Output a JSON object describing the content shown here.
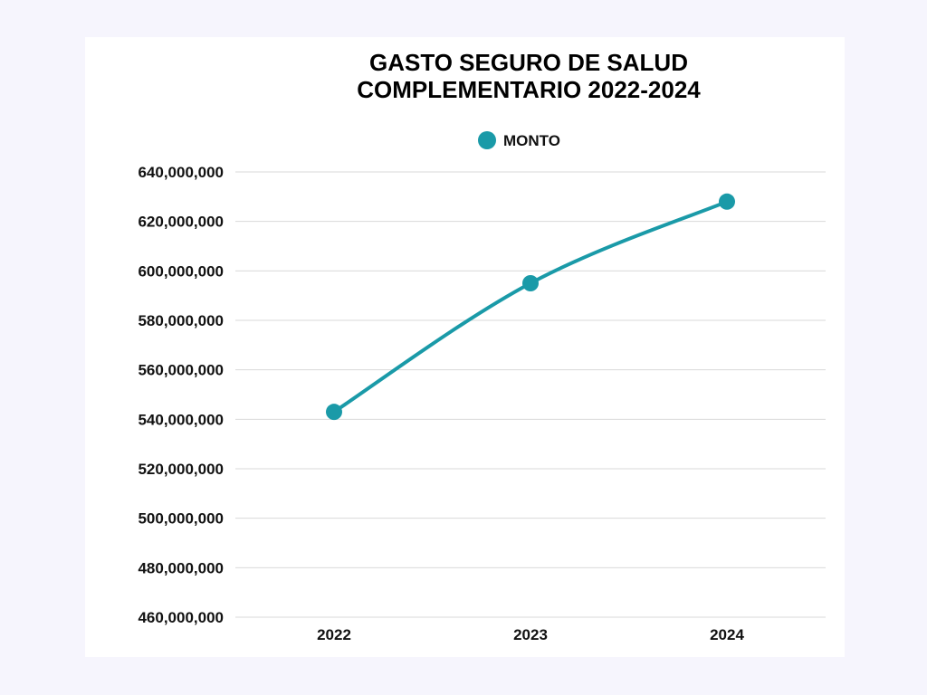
{
  "colors": {
    "page_background": "#f6f5fd",
    "card_background": "#ffffff",
    "series": "#1a9aa8",
    "grid": "#d9d9d9",
    "text": "#111111"
  },
  "chart_data": {
    "type": "line",
    "title_lines": [
      "GASTO SEGURO DE SALUD",
      "COMPLEMENTARIO 2022-2024"
    ],
    "categories": [
      "2022",
      "2023",
      "2024"
    ],
    "series": [
      {
        "name": "MONTO",
        "values": [
          543000000,
          595000000,
          628000000
        ]
      }
    ],
    "y_ticks": [
      "460,000,000",
      "480,000,000",
      "500,000,000",
      "520,000,000",
      "540,000,000",
      "560,000,000",
      "580,000,000",
      "600,000,000",
      "620,000,000",
      "640,000,000"
    ],
    "ylim": [
      460000000,
      640000000
    ],
    "ytick_step": 20000000,
    "grid": true,
    "legend_position": "top-center",
    "line_style": "smooth",
    "markers": true,
    "xlabel": "",
    "ylabel": ""
  }
}
